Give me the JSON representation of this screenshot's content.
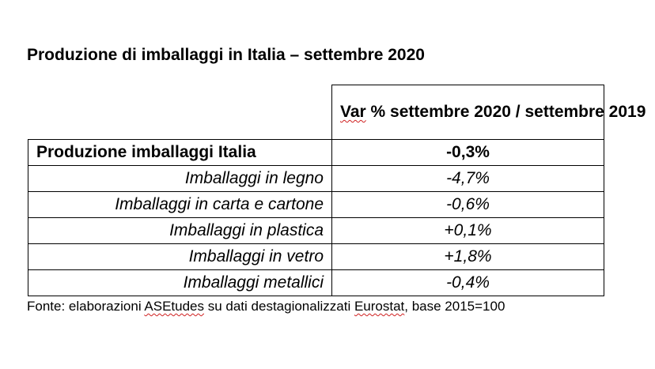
{
  "title": "Produzione di imballaggi in Italia – settembre 2020",
  "table": {
    "header": {
      "var_word": "Var",
      "var_rest": " % settembre 2020 / settembre 2019"
    },
    "total_row": {
      "label": "Produzione imballaggi Italia",
      "value": "-0,3%"
    },
    "rows": [
      {
        "label": "Imballaggi in legno",
        "value": "-4,7%"
      },
      {
        "label": "Imballaggi in carta e cartone",
        "value": "-0,6%"
      },
      {
        "label": "Imballaggi in plastica",
        "value": "+0,1%"
      },
      {
        "label": "Imballaggi in vetro",
        "value": "+1,8%"
      },
      {
        "label": "Imballaggi metallici",
        "value": "-0,4%"
      }
    ]
  },
  "source": {
    "part1": "Fonte: elaborazioni ",
    "asetudes": "ASEtudes",
    "part2": " su dati destagionalizzati ",
    "eurostat": "Eurostat",
    "part3": ", base 2015=100"
  },
  "colors": {
    "text": "#000000",
    "background": "#ffffff",
    "border": "#000000",
    "spellcheck_underline": "#d02020"
  }
}
